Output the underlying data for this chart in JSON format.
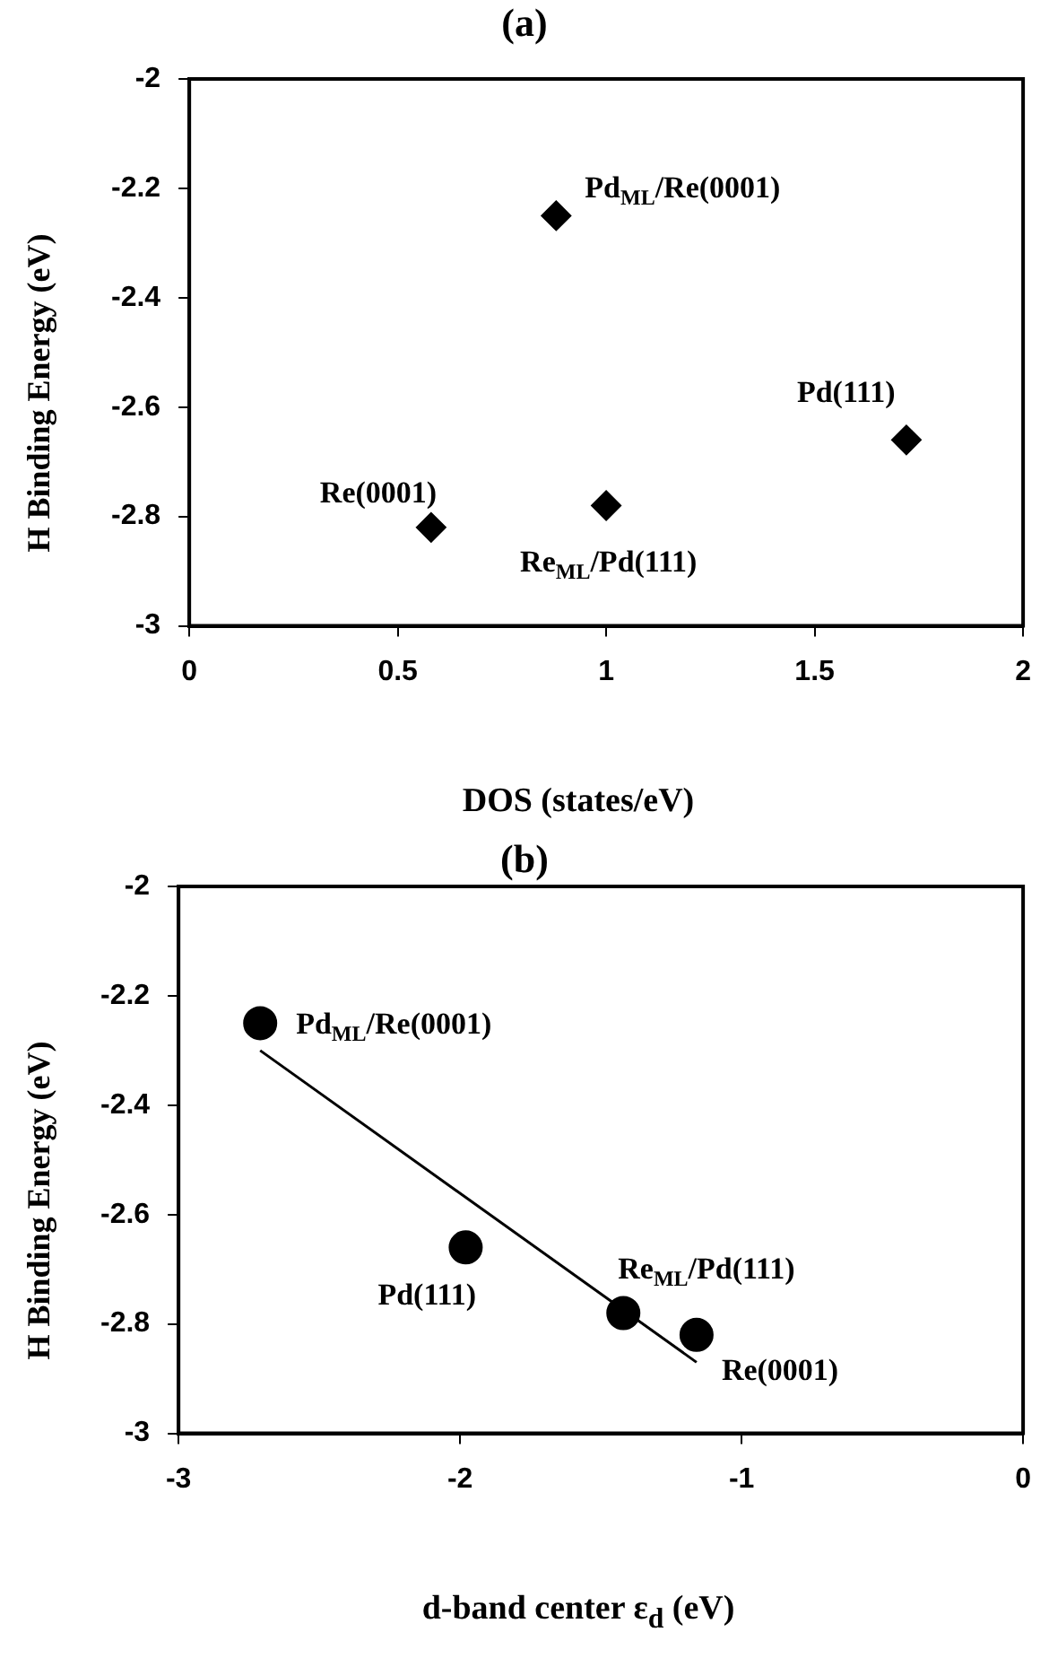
{
  "chart_data": [
    {
      "type": "scatter",
      "title": "(a)",
      "xlabel": "DOS  (states/eV)",
      "ylabel": "H Binding Energy (eV)",
      "xlim": [
        0,
        2
      ],
      "xticks": [
        0,
        0.5,
        1,
        1.5,
        2
      ],
      "ylim": [
        -3,
        -2
      ],
      "yticks": [
        -3,
        -2.8,
        -2.6,
        -2.4,
        -2.2,
        -2
      ],
      "grid": false,
      "legend": false,
      "marker": "diamond",
      "series": [
        {
          "color": "#000000",
          "x": [
            0.88,
            1.72,
            0.58,
            1.0
          ],
          "values": [
            -2.25,
            -2.66,
            -2.82,
            -2.78
          ]
        }
      ],
      "annotations": [
        {
          "text": "Pd$_{ML}$/Re(0001)",
          "x": 0.88,
          "y": -2.25
        },
        {
          "text": "Pd(111)",
          "x": 1.72,
          "y": -2.66
        },
        {
          "text": "Re(0001)",
          "x": 0.58,
          "y": -2.82
        },
        {
          "text": "Re$_{ML}$/Pd(111)",
          "x": 1.0,
          "y": -2.78
        }
      ]
    },
    {
      "type": "scatter",
      "title": "(b)",
      "xlabel": "d-band center ε$_{d}$ (eV)",
      "ylabel": "H Binding Energy (eV)",
      "xlim": [
        -3,
        0
      ],
      "xticks": [
        -3,
        -2,
        -1,
        0
      ],
      "ylim": [
        -3,
        -2
      ],
      "yticks": [
        -3,
        -2.8,
        -2.6,
        -2.4,
        -2.2,
        -2
      ],
      "grid": false,
      "legend": false,
      "marker": "circle",
      "series": [
        {
          "color": "#000000",
          "x": [
            -2.71,
            -1.98,
            -1.42,
            -1.16
          ],
          "values": [
            -2.25,
            -2.66,
            -2.78,
            -2.82
          ]
        },
        {
          "type": "line",
          "color": "#000000",
          "marker": "none",
          "line_style": "solid",
          "x": [
            -2.71,
            -1.16
          ],
          "values": [
            -2.3,
            -2.87
          ]
        }
      ],
      "annotations": [
        {
          "text": "Pd$_{ML}$/Re(0001)",
          "x": -2.71,
          "y": -2.25
        },
        {
          "text": "Pd(111)",
          "x": -1.98,
          "y": -2.66
        },
        {
          "text": "Re$_{ML}$/Pd(111)",
          "x": -1.42,
          "y": -2.78
        },
        {
          "text": "Re(0001)",
          "x": -1.16,
          "y": -2.82
        }
      ]
    }
  ]
}
